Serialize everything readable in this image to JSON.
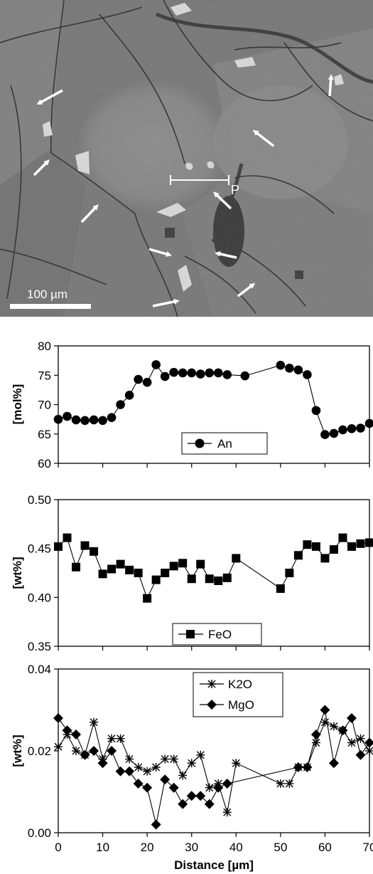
{
  "image": {
    "scale_bar_label": "100 µm",
    "profile_label": "P"
  },
  "chart_data": [
    {
      "type": "line",
      "ylabel": "[mol%]",
      "ylim": [
        60,
        80
      ],
      "yticks": [
        "60",
        "65",
        "70",
        "75",
        "80"
      ],
      "xlim": [
        0,
        70
      ],
      "series": [
        {
          "name": "An",
          "marker": "circle",
          "x": [
            0,
            2,
            4,
            6,
            8,
            10,
            12,
            14,
            16,
            18,
            20,
            22,
            24,
            26,
            28,
            30,
            32,
            34,
            36,
            38,
            42,
            50,
            52,
            54,
            56,
            58,
            60,
            62,
            64,
            66,
            68,
            70
          ],
          "y": [
            67.5,
            68.0,
            67.4,
            67.3,
            67.4,
            67.3,
            67.8,
            70.0,
            71.6,
            74.3,
            73.8,
            76.8,
            74.8,
            75.5,
            75.4,
            75.4,
            75.2,
            75.4,
            75.4,
            75.1,
            74.9,
            76.7,
            76.2,
            75.9,
            75.1,
            69.0,
            64.9,
            65.1,
            65.7,
            65.9,
            66.0,
            66.8
          ]
        }
      ]
    },
    {
      "type": "line",
      "ylabel": "[wt%]",
      "ylim": [
        0.35,
        0.5
      ],
      "yticks": [
        "0.35",
        "0.40",
        "0.45",
        "0.50"
      ],
      "xlim": [
        0,
        70
      ],
      "series": [
        {
          "name": "FeO",
          "marker": "square",
          "x": [
            0,
            2,
            4,
            6,
            8,
            10,
            12,
            14,
            16,
            18,
            20,
            22,
            24,
            26,
            28,
            30,
            32,
            34,
            36,
            38,
            40,
            50,
            52,
            54,
            56,
            58,
            60,
            62,
            64,
            66,
            68,
            70
          ],
          "y": [
            0.452,
            0.461,
            0.431,
            0.453,
            0.447,
            0.424,
            0.429,
            0.434,
            0.428,
            0.425,
            0.399,
            0.418,
            0.425,
            0.432,
            0.435,
            0.419,
            0.434,
            0.419,
            0.417,
            0.42,
            0.44,
            0.409,
            0.425,
            0.443,
            0.454,
            0.452,
            0.44,
            0.449,
            0.461,
            0.452,
            0.455,
            0.456
          ]
        }
      ]
    },
    {
      "type": "line",
      "ylabel": "[wt%]",
      "xlabel": "Distance [µm]",
      "ylim": [
        0.0,
        0.04
      ],
      "yticks": [
        "0.00",
        "0.02",
        "0.04"
      ],
      "xlim": [
        0,
        70
      ],
      "xticks": [
        "0",
        "10",
        "20",
        "30",
        "40",
        "50",
        "60",
        "70"
      ],
      "series": [
        {
          "name": "K2O",
          "marker": "asterisk",
          "x": [
            0,
            2,
            4,
            6,
            8,
            10,
            12,
            14,
            16,
            18,
            20,
            22,
            24,
            26,
            28,
            30,
            32,
            34,
            36,
            38,
            40,
            50,
            52,
            54,
            56,
            58,
            60,
            62,
            64,
            66,
            68,
            70
          ],
          "y": [
            0.021,
            0.024,
            0.02,
            0.019,
            0.027,
            0.018,
            0.023,
            0.023,
            0.018,
            0.016,
            0.015,
            0.016,
            0.018,
            0.018,
            0.014,
            0.017,
            0.019,
            0.011,
            0.012,
            0.005,
            0.017,
            0.012,
            0.012,
            0.016,
            0.016,
            0.022,
            0.027,
            0.026,
            0.025,
            0.022,
            0.023,
            0.02
          ]
        },
        {
          "name": "MgO",
          "marker": "diamond",
          "x": [
            0,
            2,
            4,
            6,
            8,
            10,
            12,
            14,
            16,
            18,
            20,
            22,
            24,
            26,
            28,
            30,
            32,
            34,
            36,
            38,
            54,
            56,
            58,
            60,
            62,
            64,
            66,
            68,
            70
          ],
          "y": [
            0.028,
            0.025,
            0.024,
            0.019,
            0.02,
            0.017,
            0.02,
            0.015,
            0.015,
            0.012,
            0.011,
            0.002,
            0.013,
            0.011,
            0.007,
            0.009,
            0.009,
            0.007,
            0.011,
            0.012,
            0.016,
            0.016,
            0.024,
            0.03,
            0.017,
            0.025,
            0.028,
            0.019,
            0.022
          ]
        }
      ]
    }
  ]
}
